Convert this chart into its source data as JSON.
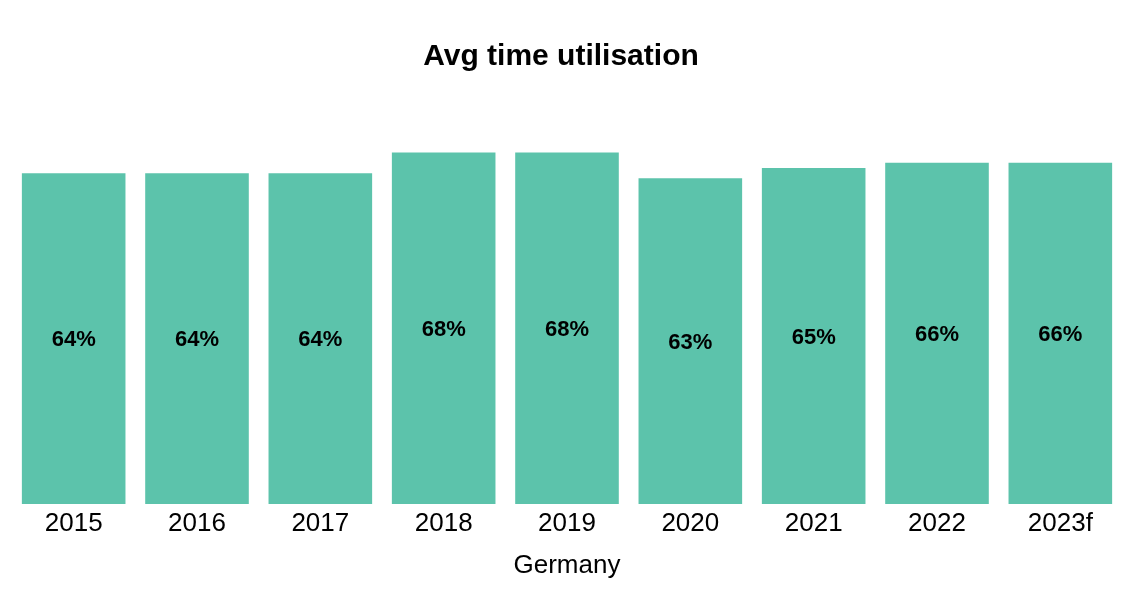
{
  "chart_data": {
    "type": "bar",
    "title": "Avg time utilisation",
    "xlabel": "Germany",
    "categories": [
      "2015",
      "2016",
      "2017",
      "2018",
      "2019",
      "2020",
      "2021",
      "2022",
      "2023f"
    ],
    "values": [
      64,
      64,
      64,
      68,
      68,
      63,
      65,
      66,
      66
    ],
    "value_labels": [
      "64%",
      "64%",
      "64%",
      "68%",
      "68%",
      "63%",
      "65%",
      "66%",
      "66%"
    ],
    "color": "#5cc3ab",
    "tick_labels": "x"
  }
}
